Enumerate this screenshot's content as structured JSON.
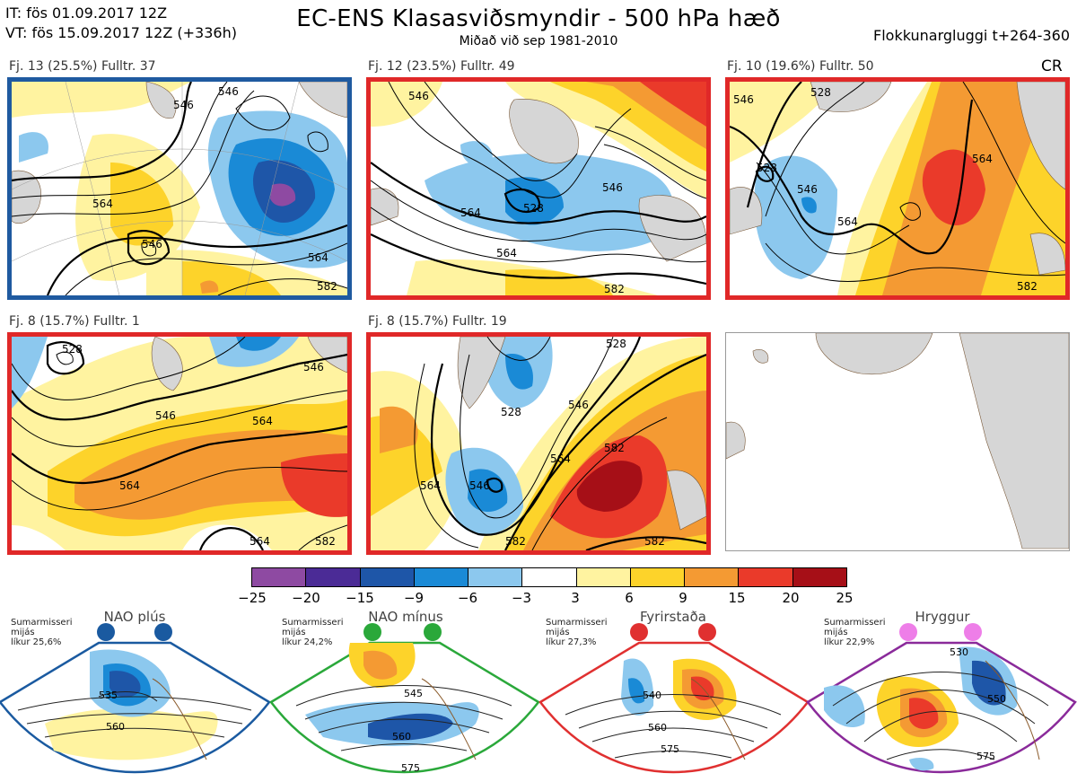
{
  "header": {
    "init_time": "IT: fös 01.09.2017 12Z",
    "valid_time": "VT: fös 15.09.2017 12Z  (+336h)",
    "title": "EC-ENS Klasasviðsmyndir - 500 hPa hæð",
    "subtitle": "Miðað við sep 1981-2010",
    "window": "Flokkunargluggi t+264-360",
    "code": "CR"
  },
  "clusters": [
    {
      "label": "Fj. 13 (25.5%)   Fulltr. 37",
      "border": "#1f5aa0",
      "contours": [
        "546",
        "546",
        "564",
        "546",
        "564",
        "582"
      ]
    },
    {
      "label": "Fj. 12 (23.5%)   Fulltr. 49",
      "border": "#e02828",
      "contours": [
        "546",
        "528",
        "546",
        "564",
        "564",
        "582"
      ]
    },
    {
      "label": "Fj. 10 (19.6%)   Fulltr. 50",
      "border": "#e02828",
      "contours": [
        "546",
        "528",
        "528",
        "546",
        "564",
        "564",
        "582"
      ]
    },
    {
      "label": "Fj. 8 (15.7%)   Fulltr. 1",
      "border": "#e02828",
      "contours": [
        "528",
        "546",
        "546",
        "564",
        "564",
        "564",
        "582"
      ]
    },
    {
      "label": "Fj. 8 (15.7%)   Fulltr. 19",
      "border": "#e02828",
      "contours": [
        "528",
        "528",
        "546",
        "546",
        "564",
        "564",
        "582",
        "582",
        "582"
      ]
    }
  ],
  "colorbar": {
    "ticks": [
      "−25",
      "−20",
      "−15",
      "−9",
      "−6",
      "−3",
      "3",
      "6",
      "9",
      "15",
      "20",
      "25"
    ],
    "colors": [
      "#8e4aa2",
      "#4b2b96",
      "#1e56a8",
      "#1a8ad6",
      "#8cc8ee",
      "#ffffff",
      "#fff3a0",
      "#fdd32a",
      "#f49a33",
      "#ea3a2a",
      "#a60f17"
    ]
  },
  "regimes": [
    {
      "name": "NAO plús",
      "note": [
        "Sumarmisseri",
        "mijás",
        "líkur 25,6%"
      ],
      "color": "#1a5aa0",
      "contours": [
        "535",
        "560"
      ]
    },
    {
      "name": "NAO mínus",
      "note": [
        "Sumarmisseri",
        "mijás",
        "líkur 24,2%"
      ],
      "color": "#2aa83a",
      "contours": [
        "545",
        "560",
        "575"
      ]
    },
    {
      "name": "Fyrirstaða",
      "note": [
        "Sumarmisseri",
        "mijás",
        "líkur 27,3%"
      ],
      "color": "#e03030",
      "contours": [
        "540",
        "560",
        "575"
      ]
    },
    {
      "name": "Hryggur",
      "note": [
        "Sumarmisseri",
        "mijás",
        "líkur 22,9%"
      ],
      "color": "#8a2a9a",
      "contours": [
        "530",
        "550",
        "575"
      ]
    }
  ],
  "icons": {
    "regime_dot": "filled-circle-icon"
  }
}
